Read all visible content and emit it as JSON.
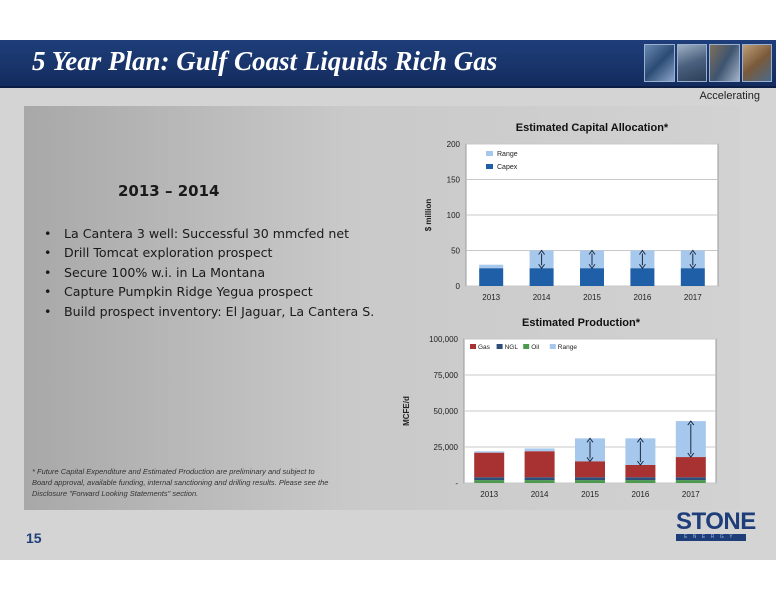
{
  "title": "5 Year Plan: Gulf Coast Liquids Rich Gas",
  "subtitle": "Accelerating",
  "page_number": "15",
  "period": "2013 – 2014",
  "bullets": [
    "La Cantera 3 well: Successful 30 mmcfed net",
    "Drill Tomcat exploration prospect",
    "Secure 100% w.i. in La Montana",
    "Capture Pumpkin Ridge Yegua prospect",
    "Build prospect inventory: El Jaguar, La Cantera S."
  ],
  "footnote": "* Future Capital Expenditure and Estimated Production are preliminary and subject to Board approval, available funding, internal sanctioning and drilling results. Please see the Disclosure \"Forward Looking Statements\" section.",
  "logo": {
    "word": "STONE",
    "strip": "ENERGY"
  },
  "colors": {
    "title_bar": "#1e3e7a",
    "capex": "#1f5fa8",
    "range": "#a6c8ec",
    "gas": "#a83232",
    "ngl": "#2e4f7a",
    "oil": "#4c9a4c"
  },
  "chart_data": [
    {
      "type": "bar",
      "title": "Estimated Capital Allocation*",
      "ylabel": "$ million",
      "ylim": [
        0,
        200
      ],
      "yticks": [
        "0",
        "50",
        "100",
        "150",
        "200"
      ],
      "categories": [
        "2013",
        "2014",
        "2015",
        "2016",
        "2017"
      ],
      "series": [
        {
          "name": "Range",
          "low": [
            25,
            25,
            25,
            25,
            25
          ],
          "high": [
            30,
            50,
            50,
            50,
            50
          ]
        },
        {
          "name": "Capex",
          "values": [
            25,
            25,
            25,
            25,
            25
          ]
        }
      ],
      "legend": "top-left",
      "grid": true
    },
    {
      "type": "bar",
      "stacked": true,
      "title": "Estimated Production*",
      "ylabel": "MCFE/d",
      "ylim": [
        0,
        100000
      ],
      "yticks": [
        "-",
        "25,000",
        "50,000",
        "75,000",
        "100,000"
      ],
      "categories": [
        "2013",
        "2014",
        "2015",
        "2016",
        "2017"
      ],
      "series": [
        {
          "name": "Gas",
          "values": [
            17000,
            18000,
            11000,
            8500,
            14000
          ]
        },
        {
          "name": "NGL",
          "values": [
            2000,
            2000,
            2000,
            2000,
            2000
          ]
        },
        {
          "name": "Oil",
          "values": [
            2000,
            2000,
            2000,
            2000,
            2000
          ]
        },
        {
          "name": "Range",
          "low": [
            21000,
            22000,
            15000,
            12500,
            18000
          ],
          "high": [
            22000,
            24000,
            31000,
            31000,
            43000
          ]
        }
      ],
      "legend": "top-left",
      "grid": true
    }
  ]
}
